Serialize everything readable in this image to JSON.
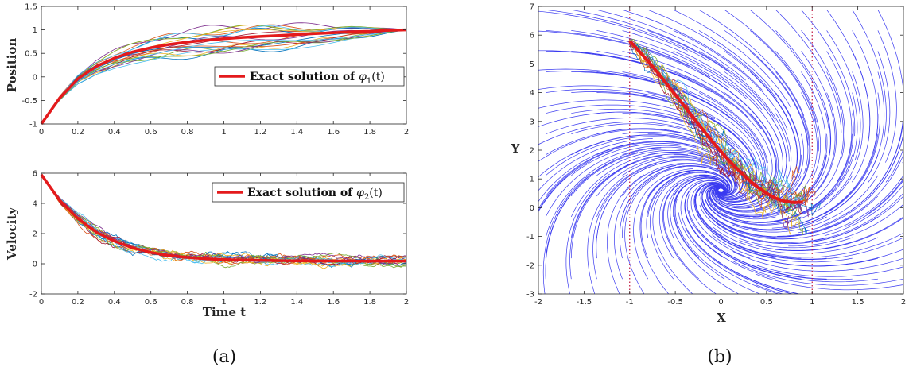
{
  "captions": {
    "a": "(a)",
    "b": "(b)"
  },
  "colors": {
    "exact": "#e41a1c",
    "field": "#3a3af0",
    "sample_cycle": [
      "#0072bd",
      "#d95319",
      "#edb120",
      "#7e2f8e",
      "#77ac30",
      "#4dbeee",
      "#a2142f"
    ],
    "dotted": "#c0143c"
  },
  "chart_data": [
    {
      "id": "position",
      "type": "line",
      "xlabel": "",
      "ylabel": "Position",
      "xlim": [
        0,
        2
      ],
      "ylim": [
        -1,
        1.5
      ],
      "xticks": [
        "0",
        "0.2",
        "0.4",
        "0.6",
        "0.8",
        "1",
        "1.2",
        "1.4",
        "1.6",
        "1.8",
        "2"
      ],
      "yticks": [
        "-1",
        "-0.5",
        "0",
        "0.5",
        "1",
        "1.5"
      ],
      "legend": {
        "label_prefix": "Exact solution of ",
        "symbol": "φ",
        "subscript": "1",
        "suffix": "(t)",
        "placement": "right"
      },
      "exact": {
        "x": [
          0,
          0.1,
          0.2,
          0.3,
          0.4,
          0.5,
          0.6,
          0.7,
          0.8,
          0.9,
          1.0,
          1.1,
          1.2,
          1.3,
          1.4,
          1.5,
          1.6,
          1.7,
          1.8,
          1.9,
          2.0
        ],
        "y": [
          -1,
          -0.45,
          -0.04,
          0.22,
          0.4,
          0.53,
          0.62,
          0.69,
          0.74,
          0.78,
          0.81,
          0.84,
          0.86,
          0.88,
          0.9,
          0.92,
          0.94,
          0.96,
          0.97,
          0.99,
          1.0
        ]
      },
      "samples": {
        "count": 20,
        "spread": 0.3
      }
    },
    {
      "id": "velocity",
      "type": "line",
      "xlabel": "Time t",
      "ylabel": "Velocity",
      "xlim": [
        0,
        2
      ],
      "ylim": [
        -2,
        6
      ],
      "xticks": [
        "0",
        "0.2",
        "0.4",
        "0.6",
        "0.8",
        "1",
        "1.2",
        "1.4",
        "1.6",
        "1.8",
        "2"
      ],
      "yticks": [
        "-2",
        "0",
        "2",
        "4",
        "6"
      ],
      "legend": {
        "label_prefix": "Exact solution of ",
        "symbol": "φ",
        "subscript": "2",
        "suffix": "(t)",
        "placement": "top-right"
      },
      "exact": {
        "x": [
          0,
          0.1,
          0.2,
          0.3,
          0.4,
          0.5,
          0.6,
          0.7,
          0.8,
          0.9,
          1.0,
          1.2,
          1.4,
          1.6,
          1.8,
          2.0
        ],
        "y": [
          5.9,
          4.2,
          3.0,
          2.1,
          1.5,
          1.05,
          0.75,
          0.55,
          0.42,
          0.33,
          0.28,
          0.22,
          0.2,
          0.19,
          0.18,
          0.18
        ]
      },
      "samples": {
        "count": 20,
        "noise": 0.6
      }
    },
    {
      "id": "phase",
      "type": "line",
      "xlabel": "X",
      "ylabel": "Y",
      "xlim": [
        -2,
        2
      ],
      "ylim": [
        -3,
        7
      ],
      "xticks": [
        "-2",
        "-1.5",
        "-1",
        "-0.5",
        "0",
        "0.5",
        "1",
        "1.5",
        "2"
      ],
      "yticks": [
        "-3",
        "-2",
        "-1",
        "0",
        "1",
        "2",
        "3",
        "4",
        "5",
        "6",
        "7"
      ],
      "exact": {
        "x": [
          -1.0,
          -0.9,
          -0.8,
          -0.7,
          -0.6,
          -0.5,
          -0.4,
          -0.3,
          -0.2,
          -0.1,
          0.0,
          0.1,
          0.2,
          0.3,
          0.4,
          0.5,
          0.6,
          0.7,
          0.8,
          0.9
        ],
        "y": [
          5.8,
          5.45,
          5.1,
          4.72,
          4.33,
          3.93,
          3.53,
          3.12,
          2.72,
          2.33,
          1.95,
          1.6,
          1.28,
          0.98,
          0.72,
          0.5,
          0.33,
          0.22,
          0.18,
          0.2
        ]
      },
      "vertical_lines_x": [
        -1,
        1
      ],
      "samples": {
        "count": 20
      },
      "streamlines": true
    }
  ]
}
